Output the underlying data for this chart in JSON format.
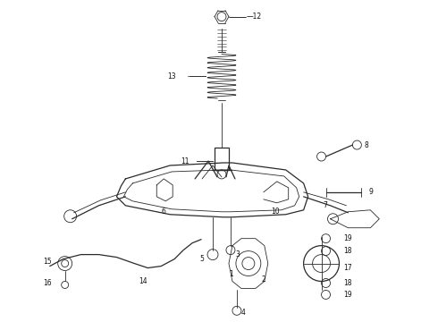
{
  "bg_color": "#ffffff",
  "line_color": "#2a2a2a",
  "label_color": "#111111",
  "fig_width": 4.9,
  "fig_height": 3.6,
  "dpi": 100,
  "lw_thin": 0.6,
  "lw_med": 0.9,
  "fs_label": 5.5
}
